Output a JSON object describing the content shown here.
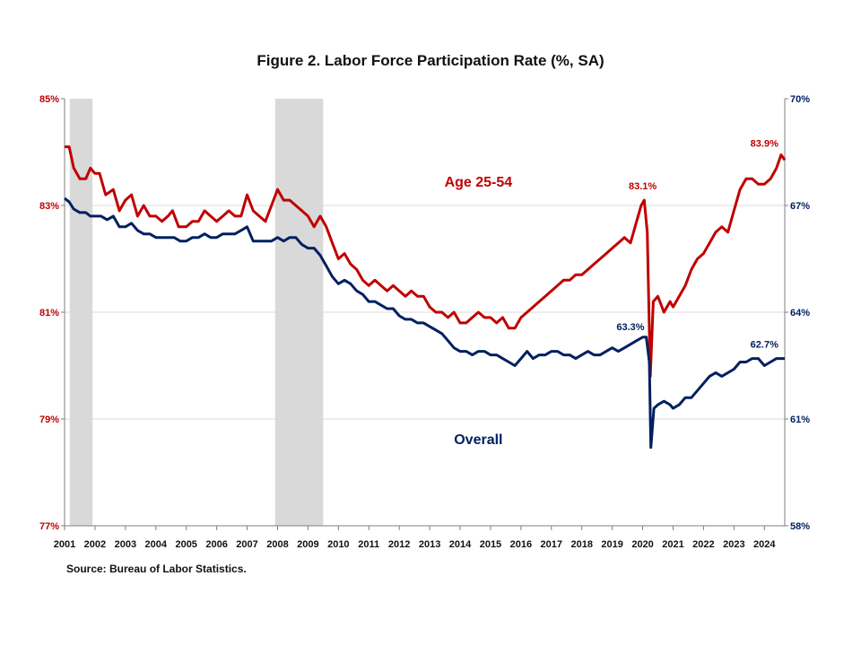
{
  "chart_data": {
    "type": "line",
    "title": "Figure 2. Labor Force Participation  Rate (%, SA)",
    "source": "Source: Bureau of Labor Statistics.",
    "x_range": [
      2001.0,
      2024.67
    ],
    "x_ticks": [
      "2001",
      "2002",
      "2003",
      "2004",
      "2005",
      "2006",
      "2007",
      "2008",
      "2009",
      "2010",
      "2011",
      "2012",
      "2013",
      "2014",
      "2015",
      "2016",
      "2017",
      "2018",
      "2019",
      "2020",
      "2021",
      "2022",
      "2023",
      "2024"
    ],
    "y_left": {
      "range": [
        77,
        85
      ],
      "ticks": [
        "77%",
        "79%",
        "81%",
        "83%",
        "85%"
      ],
      "color": "#C00000"
    },
    "y_right": {
      "range": [
        58,
        70
      ],
      "ticks": [
        "58%",
        "61%",
        "64%",
        "67%",
        "70%"
      ],
      "color": "#002060"
    },
    "grid": true,
    "recessions": [
      [
        2001.17,
        2001.92
      ],
      [
        2007.92,
        2009.5
      ]
    ],
    "series": [
      {
        "name": "Age 25-54",
        "axis": "left",
        "color": "#C00000",
        "points": [
          [
            2001.0,
            84.1
          ],
          [
            2001.15,
            84.1
          ],
          [
            2001.3,
            83.7
          ],
          [
            2001.5,
            83.5
          ],
          [
            2001.7,
            83.5
          ],
          [
            2001.85,
            83.7
          ],
          [
            2002.0,
            83.6
          ],
          [
            2002.15,
            83.6
          ],
          [
            2002.35,
            83.2
          ],
          [
            2002.6,
            83.3
          ],
          [
            2002.8,
            82.9
          ],
          [
            2003.0,
            83.1
          ],
          [
            2003.2,
            83.2
          ],
          [
            2003.4,
            82.8
          ],
          [
            2003.6,
            83.0
          ],
          [
            2003.8,
            82.8
          ],
          [
            2004.0,
            82.8
          ],
          [
            2004.2,
            82.7
          ],
          [
            2004.4,
            82.8
          ],
          [
            2004.55,
            82.9
          ],
          [
            2004.75,
            82.6
          ],
          [
            2005.0,
            82.6
          ],
          [
            2005.2,
            82.7
          ],
          [
            2005.4,
            82.7
          ],
          [
            2005.6,
            82.9
          ],
          [
            2005.8,
            82.8
          ],
          [
            2006.0,
            82.7
          ],
          [
            2006.2,
            82.8
          ],
          [
            2006.4,
            82.9
          ],
          [
            2006.6,
            82.8
          ],
          [
            2006.8,
            82.8
          ],
          [
            2007.0,
            83.2
          ],
          [
            2007.2,
            82.9
          ],
          [
            2007.4,
            82.8
          ],
          [
            2007.6,
            82.7
          ],
          [
            2007.8,
            83.0
          ],
          [
            2008.0,
            83.3
          ],
          [
            2008.2,
            83.1
          ],
          [
            2008.4,
            83.1
          ],
          [
            2008.6,
            83.0
          ],
          [
            2008.8,
            82.9
          ],
          [
            2009.0,
            82.8
          ],
          [
            2009.2,
            82.6
          ],
          [
            2009.4,
            82.8
          ],
          [
            2009.6,
            82.6
          ],
          [
            2009.8,
            82.3
          ],
          [
            2010.0,
            82.0
          ],
          [
            2010.2,
            82.1
          ],
          [
            2010.4,
            81.9
          ],
          [
            2010.6,
            81.8
          ],
          [
            2010.8,
            81.6
          ],
          [
            2011.0,
            81.5
          ],
          [
            2011.2,
            81.6
          ],
          [
            2011.4,
            81.5
          ],
          [
            2011.6,
            81.4
          ],
          [
            2011.8,
            81.5
          ],
          [
            2012.0,
            81.4
          ],
          [
            2012.2,
            81.3
          ],
          [
            2012.4,
            81.4
          ],
          [
            2012.6,
            81.3
          ],
          [
            2012.8,
            81.3
          ],
          [
            2013.0,
            81.1
          ],
          [
            2013.2,
            81.0
          ],
          [
            2013.4,
            81.0
          ],
          [
            2013.6,
            80.9
          ],
          [
            2013.8,
            81.0
          ],
          [
            2014.0,
            80.8
          ],
          [
            2014.2,
            80.8
          ],
          [
            2014.4,
            80.9
          ],
          [
            2014.6,
            81.0
          ],
          [
            2014.8,
            80.9
          ],
          [
            2015.0,
            80.9
          ],
          [
            2015.2,
            80.8
          ],
          [
            2015.4,
            80.9
          ],
          [
            2015.6,
            80.7
          ],
          [
            2015.8,
            80.7
          ],
          [
            2016.0,
            80.9
          ],
          [
            2016.2,
            81.0
          ],
          [
            2016.4,
            81.1
          ],
          [
            2016.6,
            81.2
          ],
          [
            2016.8,
            81.3
          ],
          [
            2017.0,
            81.4
          ],
          [
            2017.2,
            81.5
          ],
          [
            2017.4,
            81.6
          ],
          [
            2017.6,
            81.6
          ],
          [
            2017.8,
            81.7
          ],
          [
            2018.0,
            81.7
          ],
          [
            2018.2,
            81.8
          ],
          [
            2018.4,
            81.9
          ],
          [
            2018.6,
            82.0
          ],
          [
            2018.8,
            82.1
          ],
          [
            2019.0,
            82.2
          ],
          [
            2019.2,
            82.3
          ],
          [
            2019.4,
            82.4
          ],
          [
            2019.6,
            82.3
          ],
          [
            2019.8,
            82.7
          ],
          [
            2019.95,
            83.0
          ],
          [
            2020.05,
            83.1
          ],
          [
            2020.15,
            82.5
          ],
          [
            2020.25,
            79.8
          ],
          [
            2020.35,
            81.2
          ],
          [
            2020.5,
            81.3
          ],
          [
            2020.7,
            81.0
          ],
          [
            2020.9,
            81.2
          ],
          [
            2021.0,
            81.1
          ],
          [
            2021.2,
            81.3
          ],
          [
            2021.4,
            81.5
          ],
          [
            2021.6,
            81.8
          ],
          [
            2021.8,
            82.0
          ],
          [
            2022.0,
            82.1
          ],
          [
            2022.2,
            82.3
          ],
          [
            2022.4,
            82.5
          ],
          [
            2022.6,
            82.6
          ],
          [
            2022.8,
            82.5
          ],
          [
            2023.0,
            82.9
          ],
          [
            2023.2,
            83.3
          ],
          [
            2023.4,
            83.5
          ],
          [
            2023.6,
            83.5
          ],
          [
            2023.8,
            83.4
          ],
          [
            2024.0,
            83.4
          ],
          [
            2024.2,
            83.5
          ],
          [
            2024.4,
            83.7
          ],
          [
            2024.55,
            83.95
          ],
          [
            2024.67,
            83.85
          ]
        ]
      },
      {
        "name": "Overall",
        "axis": "right",
        "color": "#002060",
        "points": [
          [
            2001.0,
            67.2
          ],
          [
            2001.15,
            67.1
          ],
          [
            2001.3,
            66.9
          ],
          [
            2001.5,
            66.8
          ],
          [
            2001.7,
            66.8
          ],
          [
            2001.85,
            66.7
          ],
          [
            2002.0,
            66.7
          ],
          [
            2002.2,
            66.7
          ],
          [
            2002.4,
            66.6
          ],
          [
            2002.6,
            66.7
          ],
          [
            2002.8,
            66.4
          ],
          [
            2003.0,
            66.4
          ],
          [
            2003.2,
            66.5
          ],
          [
            2003.4,
            66.3
          ],
          [
            2003.6,
            66.2
          ],
          [
            2003.8,
            66.2
          ],
          [
            2004.0,
            66.1
          ],
          [
            2004.2,
            66.1
          ],
          [
            2004.4,
            66.1
          ],
          [
            2004.6,
            66.1
          ],
          [
            2004.8,
            66.0
          ],
          [
            2005.0,
            66.0
          ],
          [
            2005.2,
            66.1
          ],
          [
            2005.4,
            66.1
          ],
          [
            2005.6,
            66.2
          ],
          [
            2005.8,
            66.1
          ],
          [
            2006.0,
            66.1
          ],
          [
            2006.2,
            66.2
          ],
          [
            2006.4,
            66.2
          ],
          [
            2006.6,
            66.2
          ],
          [
            2006.8,
            66.3
          ],
          [
            2007.0,
            66.4
          ],
          [
            2007.2,
            66.0
          ],
          [
            2007.4,
            66.0
          ],
          [
            2007.6,
            66.0
          ],
          [
            2007.8,
            66.0
          ],
          [
            2008.0,
            66.1
          ],
          [
            2008.2,
            66.0
          ],
          [
            2008.4,
            66.1
          ],
          [
            2008.6,
            66.1
          ],
          [
            2008.8,
            65.9
          ],
          [
            2009.0,
            65.8
          ],
          [
            2009.2,
            65.8
          ],
          [
            2009.4,
            65.6
          ],
          [
            2009.6,
            65.3
          ],
          [
            2009.8,
            65.0
          ],
          [
            2010.0,
            64.8
          ],
          [
            2010.2,
            64.9
          ],
          [
            2010.4,
            64.8
          ],
          [
            2010.6,
            64.6
          ],
          [
            2010.8,
            64.5
          ],
          [
            2011.0,
            64.3
          ],
          [
            2011.2,
            64.3
          ],
          [
            2011.4,
            64.2
          ],
          [
            2011.6,
            64.1
          ],
          [
            2011.8,
            64.1
          ],
          [
            2012.0,
            63.9
          ],
          [
            2012.2,
            63.8
          ],
          [
            2012.4,
            63.8
          ],
          [
            2012.6,
            63.7
          ],
          [
            2012.8,
            63.7
          ],
          [
            2013.0,
            63.6
          ],
          [
            2013.2,
            63.5
          ],
          [
            2013.4,
            63.4
          ],
          [
            2013.6,
            63.2
          ],
          [
            2013.8,
            63.0
          ],
          [
            2014.0,
            62.9
          ],
          [
            2014.2,
            62.9
          ],
          [
            2014.4,
            62.8
          ],
          [
            2014.6,
            62.9
          ],
          [
            2014.8,
            62.9
          ],
          [
            2015.0,
            62.8
          ],
          [
            2015.2,
            62.8
          ],
          [
            2015.4,
            62.7
          ],
          [
            2015.6,
            62.6
          ],
          [
            2015.8,
            62.5
          ],
          [
            2016.0,
            62.7
          ],
          [
            2016.2,
            62.9
          ],
          [
            2016.4,
            62.7
          ],
          [
            2016.6,
            62.8
          ],
          [
            2016.8,
            62.8
          ],
          [
            2017.0,
            62.9
          ],
          [
            2017.2,
            62.9
          ],
          [
            2017.4,
            62.8
          ],
          [
            2017.6,
            62.8
          ],
          [
            2017.8,
            62.7
          ],
          [
            2018.0,
            62.8
          ],
          [
            2018.2,
            62.9
          ],
          [
            2018.4,
            62.8
          ],
          [
            2018.6,
            62.8
          ],
          [
            2018.8,
            62.9
          ],
          [
            2019.0,
            63.0
          ],
          [
            2019.2,
            62.9
          ],
          [
            2019.4,
            63.0
          ],
          [
            2019.6,
            63.1
          ],
          [
            2019.8,
            63.2
          ],
          [
            2020.0,
            63.3
          ],
          [
            2020.12,
            63.3
          ],
          [
            2020.22,
            62.6
          ],
          [
            2020.27,
            60.2
          ],
          [
            2020.37,
            61.3
          ],
          [
            2020.5,
            61.4
          ],
          [
            2020.7,
            61.5
          ],
          [
            2020.9,
            61.4
          ],
          [
            2021.0,
            61.3
          ],
          [
            2021.2,
            61.4
          ],
          [
            2021.4,
            61.6
          ],
          [
            2021.6,
            61.6
          ],
          [
            2021.8,
            61.8
          ],
          [
            2022.0,
            62.0
          ],
          [
            2022.2,
            62.2
          ],
          [
            2022.4,
            62.3
          ],
          [
            2022.6,
            62.2
          ],
          [
            2022.8,
            62.3
          ],
          [
            2023.0,
            62.4
          ],
          [
            2023.2,
            62.6
          ],
          [
            2023.4,
            62.6
          ],
          [
            2023.6,
            62.7
          ],
          [
            2023.8,
            62.7
          ],
          [
            2024.0,
            62.5
          ],
          [
            2024.2,
            62.6
          ],
          [
            2024.4,
            62.7
          ],
          [
            2024.55,
            62.7
          ],
          [
            2024.67,
            62.7
          ]
        ]
      }
    ],
    "series_labels": [
      {
        "text": "Age 25-54",
        "x": 2014.6,
        "y": 83.35,
        "axis": "left",
        "color": "#C00000"
      },
      {
        "text": "Overall",
        "x": 2014.6,
        "y": 60.3,
        "axis": "right",
        "color": "#002060"
      }
    ],
    "annotations": [
      {
        "text": "83.1%",
        "x": 2020.0,
        "y": 83.3,
        "axis": "left",
        "color": "#C00000"
      },
      {
        "text": "83.9%",
        "x": 2024.0,
        "y": 84.1,
        "axis": "left",
        "color": "#C00000"
      },
      {
        "text": "63.3%",
        "x": 2019.6,
        "y": 63.5,
        "axis": "right",
        "color": "#002060"
      },
      {
        "text": "62.7%",
        "x": 2024.0,
        "y": 63.0,
        "axis": "right",
        "color": "#002060"
      }
    ]
  }
}
